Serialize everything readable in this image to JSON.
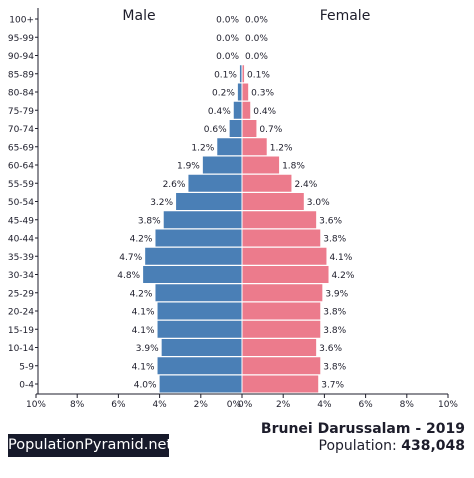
{
  "colors": {
    "male": "#4a7fb6",
    "female": "#ec7b8c",
    "ink": "#1d1d2b",
    "brand_bg": "#171a2b"
  },
  "brand_label": "PopulationPyramid.net",
  "title": "Brunei Darussalam - 2019",
  "population_label": "Population:",
  "population_value": "438,048",
  "chart_data": {
    "type": "bar",
    "orientation": "horizontal",
    "subtype": "population-pyramid",
    "unit": "%",
    "xlim": [
      -10,
      10
    ],
    "x_ticks": [
      -10,
      -8,
      -6,
      -4,
      -2,
      0,
      2,
      4,
      6,
      8,
      10
    ],
    "x_tick_labels": [
      "10%",
      "8%",
      "6%",
      "4%",
      "2%",
      "0%",
      "2%",
      "4%",
      "6%",
      "8%",
      "10%"
    ],
    "categories": [
      "100+",
      "95-99",
      "90-94",
      "85-89",
      "80-84",
      "75-79",
      "70-74",
      "65-69",
      "60-64",
      "55-59",
      "50-54",
      "45-49",
      "40-44",
      "35-39",
      "30-34",
      "25-29",
      "20-24",
      "15-19",
      "10-14",
      "5-9",
      "0-4"
    ],
    "series": [
      {
        "name": "Male",
        "values": [
          0.0,
          0.0,
          0.0,
          0.1,
          0.2,
          0.4,
          0.6,
          1.2,
          1.9,
          2.6,
          3.2,
          3.8,
          4.2,
          4.7,
          4.8,
          4.2,
          4.1,
          4.1,
          3.9,
          4.1,
          4.0
        ],
        "labels": [
          "0.0%",
          "0.0%",
          "0.0%",
          "0.1%",
          "0.2%",
          "0.4%",
          "0.6%",
          "1.2%",
          "1.9%",
          "2.6%",
          "3.2%",
          "3.8%",
          "4.2%",
          "4.7%",
          "4.8%",
          "4.2%",
          "4.1%",
          "4.1%",
          "3.9%",
          "4.1%",
          "4.0%"
        ]
      },
      {
        "name": "Female",
        "values": [
          0.0,
          0.0,
          0.0,
          0.1,
          0.3,
          0.4,
          0.7,
          1.2,
          1.8,
          2.4,
          3.0,
          3.6,
          3.8,
          4.1,
          4.2,
          3.9,
          3.8,
          3.8,
          3.6,
          3.8,
          3.7
        ],
        "labels": [
          "0.0%",
          "0.0%",
          "0.0%",
          "0.1%",
          "0.3%",
          "0.4%",
          "0.7%",
          "1.2%",
          "1.8%",
          "2.4%",
          "3.0%",
          "3.6%",
          "3.8%",
          "4.1%",
          "4.2%",
          "3.9%",
          "3.8%",
          "3.8%",
          "3.6%",
          "3.8%",
          "3.7%"
        ]
      }
    ]
  }
}
